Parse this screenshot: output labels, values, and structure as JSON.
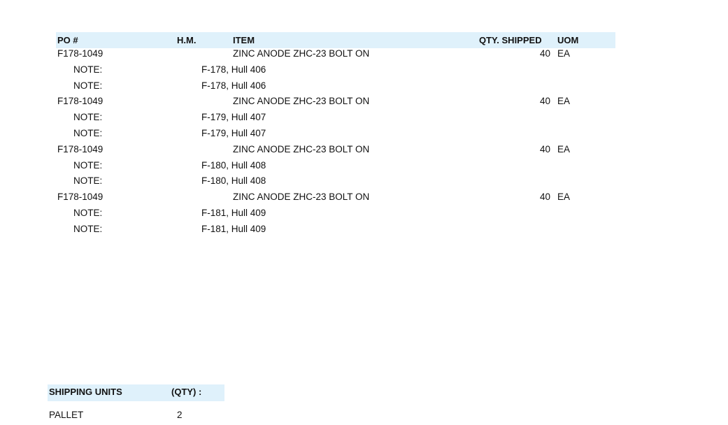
{
  "table": {
    "headers": {
      "po": "PO #",
      "hm": "H.M.",
      "item": "ITEM",
      "qty": "QTY. SHIPPED",
      "uom": "UOM"
    },
    "colors": {
      "header_bg": "#dff1fb"
    },
    "rows": [
      {
        "type": "item",
        "po": "F178-1049",
        "item": "ZINC ANODE ZHC-23 BOLT ON",
        "qty": "40",
        "uom": "EA"
      },
      {
        "type": "note",
        "label": "NOTE:",
        "text": "F-178, Hull 406"
      },
      {
        "type": "note",
        "label": "NOTE:",
        "text": "F-178, Hull 406"
      },
      {
        "type": "item",
        "po": "F178-1049",
        "item": "ZINC ANODE ZHC-23 BOLT ON",
        "qty": "40",
        "uom": "EA"
      },
      {
        "type": "note",
        "label": "NOTE:",
        "text": "F-179, Hull 407"
      },
      {
        "type": "note",
        "label": "NOTE:",
        "text": "F-179, Hull 407"
      },
      {
        "type": "item",
        "po": "F178-1049",
        "item": "ZINC ANODE ZHC-23 BOLT ON",
        "qty": "40",
        "uom": "EA"
      },
      {
        "type": "note",
        "label": "NOTE:",
        "text": "F-180, Hull 408"
      },
      {
        "type": "note",
        "label": "NOTE:",
        "text": "F-180, Hull 408"
      },
      {
        "type": "item",
        "po": "F178-1049",
        "item": "ZINC ANODE ZHC-23 BOLT ON",
        "qty": "40",
        "uom": "EA"
      },
      {
        "type": "note",
        "label": "NOTE:",
        "text": "F-181, Hull 409"
      },
      {
        "type": "note",
        "label": "NOTE:",
        "text": "F-181, Hull 409"
      }
    ]
  },
  "shipping": {
    "header_units": "SHIPPING UNITS",
    "header_qty": "(QTY) :",
    "unit": "PALLET",
    "qty": "2"
  }
}
